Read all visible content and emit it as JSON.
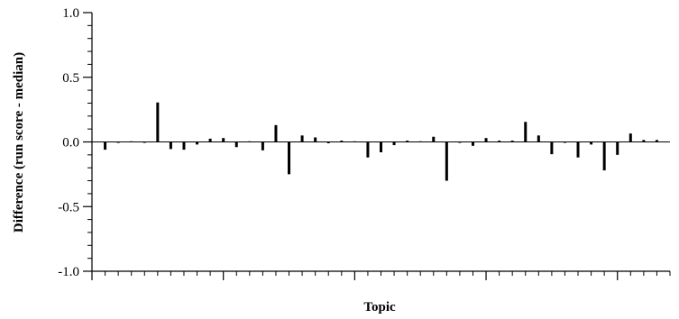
{
  "chart_data": {
    "type": "bar",
    "title": "",
    "xlabel": "Topic",
    "ylabel": "Difference (run score - median)",
    "ylim": [
      -1.0,
      1.0
    ],
    "yticks": [
      "-1.0",
      "-0.5",
      "0.0",
      "0.5",
      "1.0"
    ],
    "xlim": [
      0,
      44
    ],
    "grid": false,
    "bar_color": "#000000",
    "x": [
      1,
      2,
      3,
      4,
      5,
      6,
      7,
      8,
      9,
      10,
      11,
      12,
      13,
      14,
      15,
      16,
      17,
      18,
      19,
      20,
      21,
      22,
      23,
      24,
      25,
      26,
      27,
      28,
      29,
      30,
      31,
      32,
      33,
      34,
      35,
      36,
      37,
      38,
      39,
      40,
      41,
      42,
      43
    ],
    "values": [
      -0.06,
      0.0,
      0.005,
      0.0,
      0.305,
      -0.055,
      -0.06,
      -0.02,
      0.025,
      0.03,
      -0.04,
      0.005,
      -0.065,
      0.13,
      -0.25,
      0.05,
      0.035,
      -0.01,
      0.01,
      0.005,
      -0.12,
      -0.08,
      -0.025,
      0.01,
      0.005,
      0.04,
      -0.3,
      -0.005,
      -0.03,
      0.03,
      0.01,
      0.01,
      0.155,
      0.05,
      -0.095,
      0.0,
      -0.12,
      -0.02,
      -0.22,
      -0.1,
      0.065,
      0.015,
      0.015
    ]
  }
}
